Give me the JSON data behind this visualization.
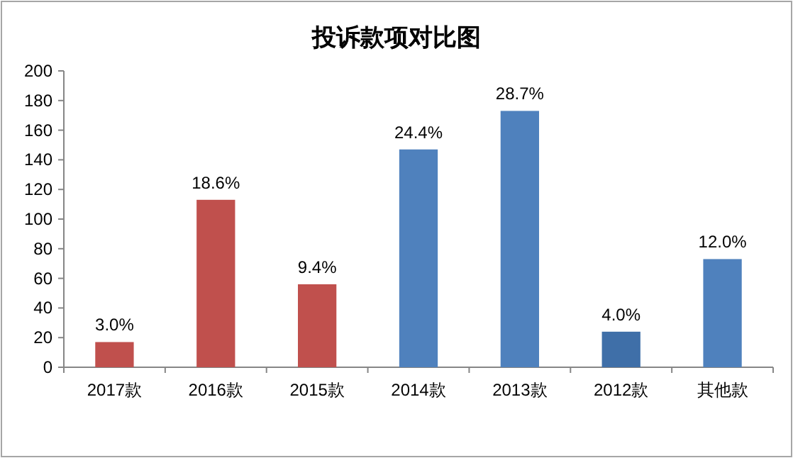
{
  "chart_data": {
    "type": "bar",
    "title": "投诉款项对比图",
    "categories": [
      "2017款",
      "2016款",
      "2015款",
      "2014款",
      "2013款",
      "2012款",
      "其他款"
    ],
    "values": [
      17,
      113,
      56,
      147,
      173,
      24,
      73
    ],
    "colors": [
      "#c0504d",
      "#c0504d",
      "#c0504d",
      "#4f81bd",
      "#4f81bd",
      "#3f6fa8",
      "#4f81bd"
    ],
    "annotations": [
      {
        "text": "3.0%",
        "x": "2017款",
        "y": 17
      },
      {
        "text": "18.6%",
        "x": "2016款",
        "y": 113
      },
      {
        "text": "9.4%",
        "x": "2015款",
        "y": 56
      },
      {
        "text": "24.4%",
        "x": "2014款",
        "y": 147
      },
      {
        "text": "28.7%",
        "x": "2013款",
        "y": 173
      },
      {
        "text": "4.0%",
        "x": "2012款",
        "y": 24
      },
      {
        "text": "12.0%",
        "x": "其他款",
        "y": 73
      }
    ],
    "ylim": [
      0,
      200
    ],
    "yticks": [
      0,
      20,
      40,
      60,
      80,
      100,
      120,
      140,
      160,
      180,
      200
    ]
  }
}
